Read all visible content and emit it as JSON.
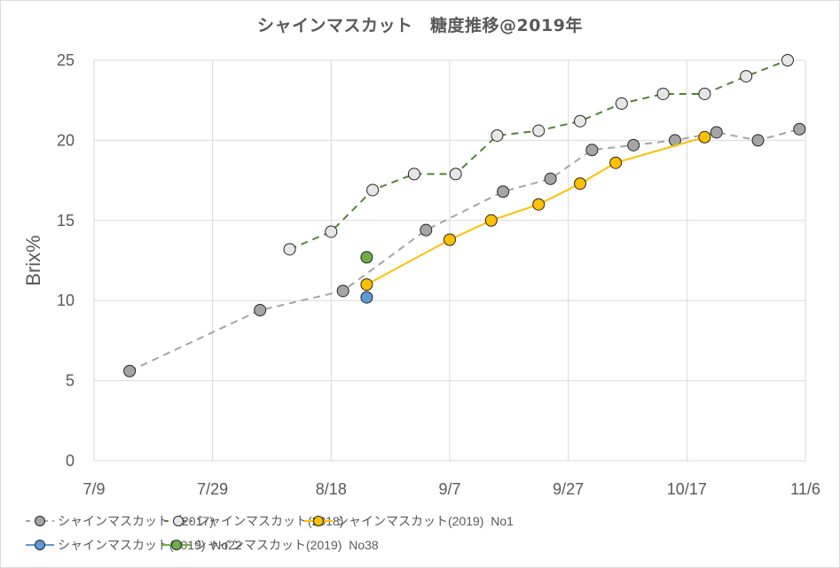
{
  "chart_data": {
    "type": "line",
    "title": "シャインマスカット　糖度推移@2019年",
    "xlabel": "",
    "ylabel": "Brix%",
    "x_type": "date",
    "x_ticks": [
      "7/9",
      "7/29",
      "8/18",
      "9/7",
      "9/27",
      "10/17",
      "11/6"
    ],
    "xlim": [
      "7/9",
      "11/6"
    ],
    "y_ticks": [
      "0",
      "5",
      "10",
      "15",
      "20",
      "25"
    ],
    "ylim": [
      0,
      25
    ],
    "grid": true,
    "legend_position": "bottom",
    "series": [
      {
        "name": "シャインマスカット（2017)",
        "color": "#a5a5a5",
        "marker_fill": "#a5a5a5",
        "line_style": "dashed",
        "x": [
          "7/15",
          "8/6",
          "8/20",
          "9/3",
          "9/16",
          "9/24",
          "10/1",
          "10/8",
          "10/15",
          "10/22",
          "10/29",
          "11/5"
        ],
        "values": [
          5.6,
          9.4,
          10.6,
          14.4,
          16.8,
          17.6,
          19.4,
          19.7,
          20.0,
          20.5,
          20.0,
          20.7
        ]
      },
      {
        "name": "シャインマスカット(2018)",
        "color": "#548235",
        "marker_fill": "#e7e6e6",
        "line_style": "dashed",
        "x": [
          "8/11",
          "8/18",
          "8/25",
          "9/1",
          "9/8",
          "9/15",
          "9/22",
          "9/29",
          "10/6",
          "10/13",
          "10/20",
          "10/27",
          "11/3"
        ],
        "values": [
          13.2,
          14.3,
          16.9,
          17.9,
          17.9,
          20.3,
          20.6,
          21.2,
          22.3,
          22.9,
          22.9,
          24.0,
          25.0
        ]
      },
      {
        "name": "シャインマスカット(2019)  No1",
        "color": "#ffc000",
        "marker_fill": "#ffc000",
        "line_style": "solid",
        "x": [
          "8/24",
          "9/7",
          "9/14",
          "9/22",
          "9/29",
          "10/5",
          "10/20"
        ],
        "values": [
          11.0,
          13.8,
          15.0,
          16.0,
          17.3,
          18.6,
          20.2
        ]
      },
      {
        "name": "シャインマスカット(2019)  No22",
        "color": "#5b9bd5",
        "marker_fill": "#5b9bd5",
        "line_style": "solid",
        "x": [
          "8/24"
        ],
        "values": [
          10.2
        ]
      },
      {
        "name": "シャインマスカット(2019)  No38",
        "color": "#70ad47",
        "marker_fill": "#70ad47",
        "line_style": "solid",
        "x": [
          "8/24"
        ],
        "values": [
          12.7
        ]
      }
    ]
  }
}
